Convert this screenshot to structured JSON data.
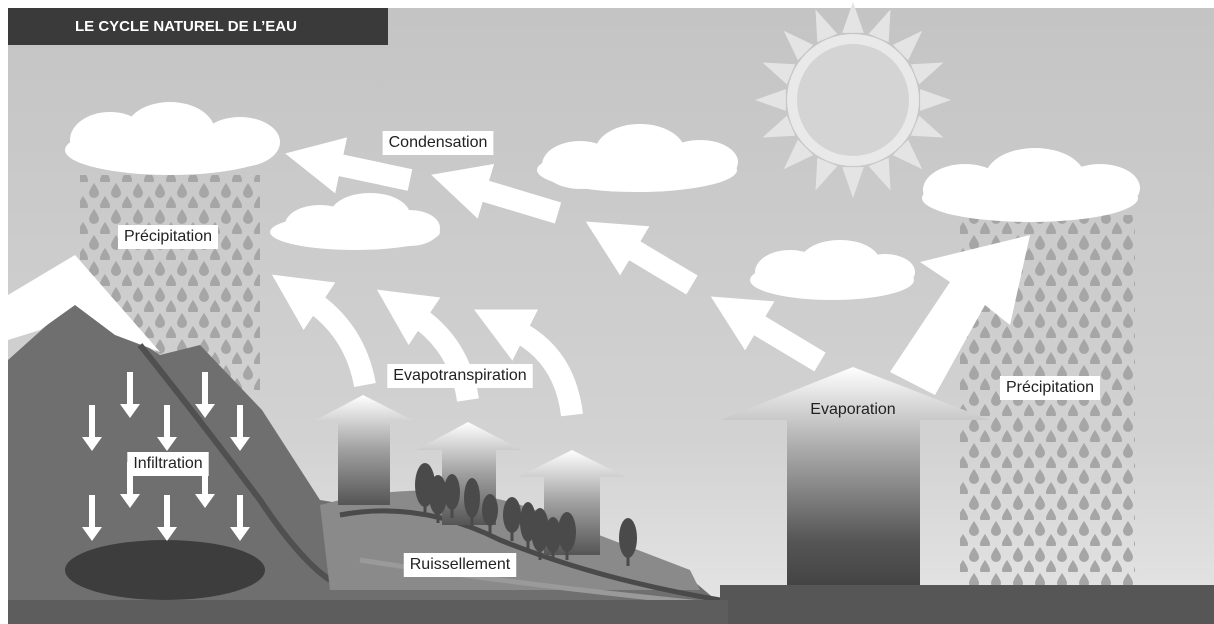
{
  "title": "LE CYCLE NATUREL DE L’EAU",
  "labels": [
    "Condensation",
    "Précipitation",
    "Evapotranspiration",
    "Infiltration",
    "Ruissellement",
    "Evaporation",
    "Précipitation"
  ]
}
